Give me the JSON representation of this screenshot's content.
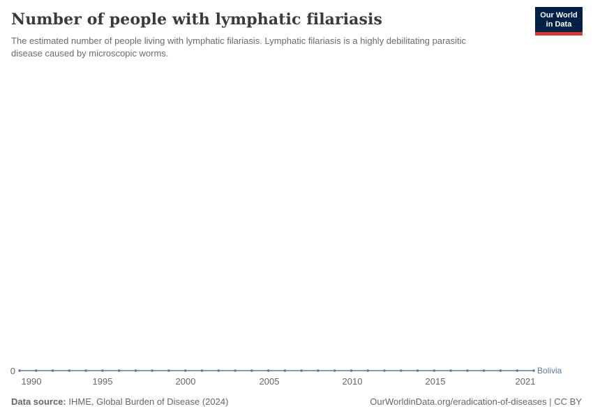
{
  "colors": {
    "navy": "#002147",
    "logo-red": "#dc3732",
    "series": "#577ca9",
    "title-text": "#3b3b3b",
    "subtitle-text": "#6b6b6b",
    "axis-text": "#666666",
    "footer-text": "#666666",
    "gridline": "#d8d8d8"
  },
  "header": {
    "title": "Number of people with lymphatic filariasis",
    "subtitle": "The estimated number of people living with lymphatic filariasis. Lymphatic filariasis is a highly debilitating parasitic disease caused by microscopic worms.",
    "logo": {
      "line1": "Our World",
      "line2": "in Data"
    }
  },
  "chart_data": {
    "type": "line",
    "title": "Number of people with lymphatic filariasis",
    "xlim": [
      1990,
      2021
    ],
    "ylim": [
      0,
      0
    ],
    "x_ticks": [
      "1990",
      "1995",
      "2000",
      "2005",
      "2010",
      "2015",
      "2021"
    ],
    "x_tick_years": [
      1990,
      1995,
      2000,
      2005,
      2010,
      2015,
      2021
    ],
    "y_ticks": [
      "0"
    ],
    "grid": "single baseline gridline at y=0",
    "legend_position": "inline-right-of-line",
    "series": [
      {
        "name": "Bolivia",
        "color": "#577ca9",
        "x": [
          1990,
          1991,
          1992,
          1993,
          1994,
          1995,
          1996,
          1997,
          1998,
          1999,
          2000,
          2001,
          2002,
          2003,
          2004,
          2005,
          2006,
          2007,
          2008,
          2009,
          2010,
          2011,
          2012,
          2013,
          2014,
          2015,
          2016,
          2017,
          2018,
          2019,
          2020,
          2021
        ],
        "values": [
          0,
          0,
          0,
          0,
          0,
          0,
          0,
          0,
          0,
          0,
          0,
          0,
          0,
          0,
          0,
          0,
          0,
          0,
          0,
          0,
          0,
          0,
          0,
          0,
          0,
          0,
          0,
          0,
          0,
          0,
          0,
          0
        ]
      }
    ]
  },
  "footer": {
    "source_label": "Data source:",
    "source_value": "IHME, Global Burden of Disease (2024)",
    "attribution": "OurWorldinData.org/eradication-of-diseases | CC BY"
  }
}
